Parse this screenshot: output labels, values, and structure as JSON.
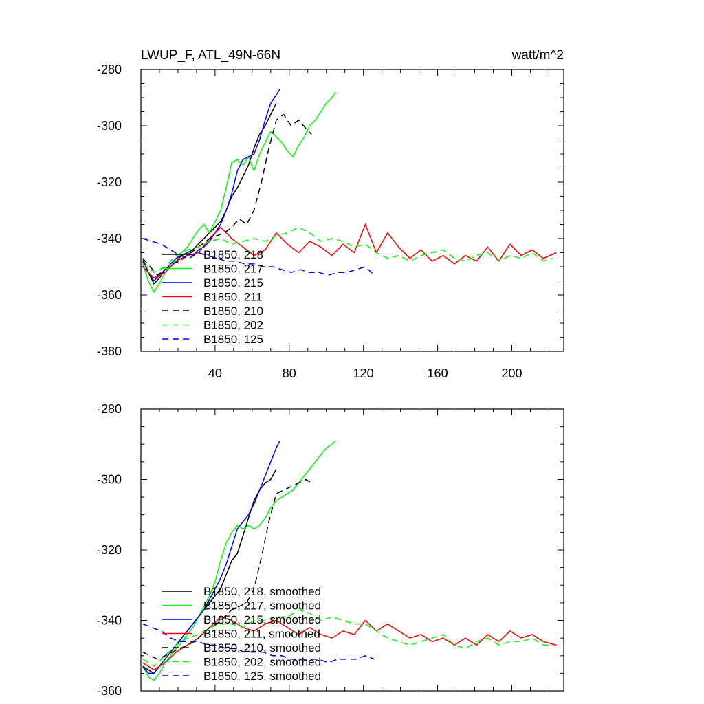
{
  "chart_data": [
    {
      "type": "line",
      "title_left": "LWUP_F, ATL_49N-66N",
      "title_right": "watt/m^2",
      "xlim": [
        0,
        228
      ],
      "ylim": [
        -380,
        -280
      ],
      "yticks": [
        -280,
        -300,
        -320,
        -340,
        -360,
        -380
      ],
      "xticks": [
        40,
        80,
        120,
        160,
        200
      ],
      "series": [
        {
          "name": "B1850, 218",
          "legend": "B1850, 218",
          "color": "#000000",
          "dash": false,
          "x": [
            1,
            4,
            7,
            10,
            13,
            16,
            19,
            22,
            25,
            28,
            31,
            34,
            37,
            40,
            43,
            46,
            49,
            52,
            55,
            58,
            61,
            64,
            67,
            70,
            73
          ],
          "y": [
            -348,
            -352,
            -356,
            -354,
            -351,
            -350,
            -348,
            -346,
            -345,
            -344,
            -342,
            -340,
            -338,
            -336,
            -334,
            -330,
            -325,
            -322,
            -318,
            -314,
            -308,
            -303,
            -300,
            -296,
            -292
          ]
        },
        {
          "name": "B1850, 217",
          "legend": "B1850, 217",
          "color": "#00ff00",
          "dash": false,
          "x": [
            1,
            4,
            7,
            10,
            13,
            16,
            19,
            22,
            25,
            28,
            31,
            34,
            37,
            40,
            43,
            46,
            49,
            52,
            55,
            58,
            61,
            64,
            67,
            70,
            73,
            76,
            79,
            82,
            85,
            88,
            91,
            94,
            97,
            100,
            103,
            105
          ],
          "y": [
            -349,
            -355,
            -359,
            -356,
            -352,
            -350,
            -347,
            -345,
            -343,
            -340,
            -337,
            -335,
            -338,
            -334,
            -330,
            -322,
            -313,
            -312,
            -314,
            -311,
            -316,
            -310,
            -306,
            -302,
            -304,
            -306,
            -309,
            -311,
            -307,
            -304,
            -300,
            -298,
            -295,
            -292,
            -290,
            -288
          ]
        },
        {
          "name": "B1850, 215",
          "legend": "B1850, 215",
          "color": "#0000ff",
          "dash": false,
          "x": [
            1,
            4,
            7,
            10,
            13,
            16,
            19,
            22,
            25,
            28,
            31,
            34,
            37,
            40,
            43,
            46,
            49,
            52,
            55,
            58,
            61,
            64,
            67,
            70,
            73,
            75
          ],
          "y": [
            -347,
            -352,
            -355,
            -353,
            -351,
            -349,
            -347,
            -346,
            -345,
            -346,
            -344,
            -343,
            -341,
            -338,
            -335,
            -330,
            -324,
            -316,
            -312,
            -311,
            -310,
            -305,
            -298,
            -292,
            -289,
            -287
          ]
        },
        {
          "name": "B1850, 211",
          "legend": "B1850, 211",
          "color": "#ff0000",
          "dash": false,
          "x": [
            1,
            7,
            13,
            19,
            25,
            31,
            37,
            43,
            49,
            55,
            61,
            67,
            73,
            79,
            85,
            91,
            97,
            103,
            109,
            115,
            121,
            127,
            133,
            139,
            145,
            151,
            157,
            163,
            169,
            175,
            181,
            187,
            193,
            199,
            205,
            211,
            217,
            224
          ],
          "y": [
            -350,
            -354,
            -352,
            -348,
            -346,
            -345,
            -340,
            -336,
            -340,
            -343,
            -346,
            -344,
            -338,
            -342,
            -345,
            -341,
            -343,
            -346,
            -342,
            -345,
            -335,
            -345,
            -338,
            -343,
            -347,
            -344,
            -348,
            -346,
            -349,
            -346,
            -348,
            -343,
            -348,
            -342,
            -346,
            -344,
            -347,
            -345
          ]
        },
        {
          "name": "B1850, 210",
          "legend": "B1850, 210",
          "color": "#000000",
          "dash": true,
          "x": [
            1,
            5,
            9,
            13,
            17,
            21,
            25,
            29,
            33,
            37,
            41,
            45,
            49,
            53,
            57,
            61,
            65,
            69,
            73,
            77,
            81,
            85,
            89,
            92
          ],
          "y": [
            -347,
            -350,
            -353,
            -351,
            -349,
            -348,
            -346,
            -344,
            -342,
            -340,
            -339,
            -338,
            -336,
            -333,
            -335,
            -330,
            -320,
            -308,
            -298,
            -296,
            -300,
            -298,
            -301,
            -303
          ]
        },
        {
          "name": "B1850, 202",
          "legend": "B1850, 202",
          "color": "#00ff00",
          "dash": true,
          "x": [
            1,
            7,
            13,
            19,
            25,
            31,
            37,
            43,
            49,
            55,
            61,
            67,
            73,
            79,
            85,
            91,
            97,
            103,
            109,
            115,
            121,
            127,
            133,
            139,
            145,
            151,
            157,
            163,
            169,
            175,
            181,
            187,
            193,
            199,
            205,
            211,
            217,
            222
          ],
          "y": [
            -349,
            -352,
            -350,
            -346,
            -344,
            -343,
            -341,
            -340,
            -342,
            -341,
            -340,
            -341,
            -339,
            -338,
            -336,
            -338,
            -341,
            -340,
            -341,
            -343,
            -342,
            -345,
            -347,
            -346,
            -348,
            -346,
            -345,
            -344,
            -347,
            -348,
            -346,
            -345,
            -348,
            -346,
            -347,
            -345,
            -348,
            -347
          ]
        },
        {
          "name": "B1850, 125",
          "legend": "B1850, 125",
          "color": "#0000ff",
          "dash": true,
          "x": [
            1,
            6,
            11,
            16,
            21,
            26,
            31,
            36,
            41,
            46,
            51,
            56,
            61,
            66,
            71,
            76,
            81,
            86,
            91,
            96,
            101,
            106,
            111,
            116,
            121,
            126
          ],
          "y": [
            -340,
            -341,
            -342,
            -344,
            -346,
            -347,
            -345,
            -346,
            -347,
            -348,
            -348,
            -349,
            -349,
            -350,
            -350,
            -351,
            -352,
            -351,
            -352,
            -352,
            -353,
            -352,
            -352,
            -351,
            -350,
            -353
          ]
        }
      ]
    },
    {
      "type": "line",
      "xlim": [
        0,
        228
      ],
      "ylim": [
        -360,
        -280
      ],
      "yticks": [
        -280,
        -300,
        -320,
        -340,
        -360
      ],
      "series": [
        {
          "name": "B1850, 218, smoothed",
          "legend": "B1850, 218, smoothed",
          "color": "#000000",
          "dash": false,
          "x": [
            1,
            4,
            7,
            10,
            13,
            16,
            19,
            22,
            25,
            28,
            31,
            34,
            37,
            40,
            43,
            46,
            49,
            52,
            55,
            58,
            61,
            64,
            67,
            70,
            73
          ],
          "y": [
            -353,
            -354,
            -355,
            -353,
            -351,
            -349,
            -347,
            -345,
            -343,
            -341,
            -339,
            -337,
            -335,
            -333,
            -331,
            -327,
            -323,
            -321,
            -316,
            -311,
            -306,
            -303,
            -301,
            -300,
            -297
          ]
        },
        {
          "name": "B1850, 217, smoothed",
          "legend": "B1850, 217, smoothed",
          "color": "#00ff00",
          "dash": false,
          "x": [
            1,
            4,
            7,
            10,
            13,
            16,
            19,
            22,
            25,
            28,
            31,
            34,
            37,
            40,
            43,
            46,
            49,
            52,
            55,
            58,
            61,
            64,
            67,
            70,
            73,
            76,
            79,
            82,
            85,
            88,
            91,
            94,
            97,
            100,
            103,
            105
          ],
          "y": [
            -353,
            -356,
            -357,
            -355,
            -352,
            -350,
            -348,
            -346,
            -344,
            -342,
            -339,
            -336,
            -333,
            -329,
            -323,
            -318,
            -315,
            -313,
            -314,
            -313,
            -314,
            -313,
            -311,
            -308,
            -306,
            -305,
            -304,
            -303,
            -301,
            -299,
            -297,
            -295,
            -293,
            -291,
            -290,
            -289
          ]
        },
        {
          "name": "B1850, 215, smoothed",
          "legend": "B1850, 215, smoothed",
          "color": "#0000ff",
          "dash": false,
          "x": [
            1,
            4,
            7,
            10,
            13,
            16,
            19,
            22,
            25,
            28,
            31,
            34,
            37,
            40,
            43,
            46,
            49,
            52,
            55,
            58,
            61,
            64,
            67,
            70,
            73,
            75
          ],
          "y": [
            -353,
            -355,
            -355,
            -353,
            -351,
            -349,
            -347,
            -345,
            -343,
            -341,
            -339,
            -337,
            -334,
            -331,
            -328,
            -324,
            -319,
            -314,
            -312,
            -310,
            -307,
            -303,
            -299,
            -295,
            -291,
            -289
          ]
        },
        {
          "name": "B1850, 211, smoothed",
          "legend": "B1850, 211, smoothed",
          "color": "#ff0000",
          "dash": false,
          "x": [
            1,
            7,
            13,
            19,
            25,
            31,
            37,
            43,
            49,
            55,
            61,
            67,
            73,
            79,
            85,
            91,
            97,
            103,
            109,
            115,
            121,
            127,
            133,
            139,
            145,
            151,
            157,
            163,
            169,
            175,
            181,
            187,
            193,
            199,
            205,
            211,
            217,
            224
          ],
          "y": [
            -352,
            -354,
            -352,
            -349,
            -347,
            -345,
            -342,
            -339,
            -340,
            -342,
            -343,
            -341,
            -340,
            -342,
            -344,
            -342,
            -344,
            -345,
            -343,
            -344,
            -340,
            -343,
            -341,
            -343,
            -345,
            -344,
            -346,
            -345,
            -347,
            -345,
            -347,
            -344,
            -346,
            -343,
            -345,
            -344,
            -346,
            -347
          ]
        },
        {
          "name": "B1850, 210, smoothed",
          "legend": "B1850, 210, smoothed",
          "color": "#000000",
          "dash": true,
          "x": [
            1,
            5,
            9,
            13,
            17,
            21,
            25,
            29,
            33,
            37,
            41,
            45,
            49,
            53,
            57,
            61,
            65,
            69,
            73,
            77,
            81,
            85,
            89,
            92
          ],
          "y": [
            -349,
            -350,
            -351,
            -350,
            -349,
            -348,
            -347,
            -346,
            -344,
            -342,
            -341,
            -339,
            -337,
            -336,
            -335,
            -331,
            -322,
            -312,
            -304,
            -303,
            -302,
            -301,
            -300,
            -301
          ]
        },
        {
          "name": "B1850, 202, smoothed",
          "legend": "B1850, 202, smoothed",
          "color": "#00ff00",
          "dash": true,
          "x": [
            1,
            7,
            13,
            19,
            25,
            31,
            37,
            43,
            49,
            55,
            61,
            67,
            73,
            79,
            85,
            91,
            97,
            103,
            109,
            115,
            121,
            127,
            133,
            139,
            145,
            151,
            157,
            163,
            169,
            175,
            181,
            187,
            193,
            199,
            205,
            211,
            217,
            222
          ],
          "y": [
            -351,
            -353,
            -350,
            -347,
            -345,
            -344,
            -342,
            -341,
            -341,
            -342,
            -340,
            -340,
            -339,
            -339,
            -337,
            -338,
            -340,
            -339,
            -340,
            -341,
            -341,
            -343,
            -345,
            -346,
            -347,
            -346,
            -345,
            -344,
            -347,
            -348,
            -346,
            -345,
            -347,
            -346,
            -346,
            -345,
            -347,
            -347
          ]
        },
        {
          "name": "B1850, 125, smoothed",
          "legend": "B1850, 125, smoothed",
          "color": "#0000ff",
          "dash": true,
          "x": [
            1,
            6,
            11,
            16,
            21,
            26,
            31,
            36,
            41,
            46,
            51,
            56,
            61,
            66,
            71,
            76,
            81,
            86,
            91,
            96,
            101,
            106,
            111,
            116,
            121,
            126
          ],
          "y": [
            -341,
            -342,
            -343,
            -345,
            -346,
            -346,
            -346,
            -347,
            -347,
            -348,
            -348,
            -349,
            -349,
            -349,
            -350,
            -350,
            -351,
            -351,
            -351,
            -351,
            -352,
            -351,
            -351,
            -351,
            -350,
            -351
          ]
        }
      ]
    }
  ]
}
